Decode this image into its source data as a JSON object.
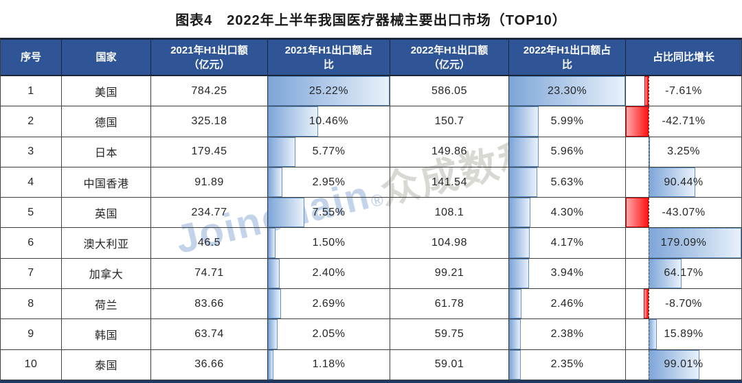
{
  "title": "图表4　2022年上半年我国医疗器械主要出口市场（TOP10）",
  "watermark": {
    "brand": "Joinchain",
    "mark": "®",
    "company": "众成数科"
  },
  "colors": {
    "header_bg": "#2F5597",
    "header_text": "#FFFFFF",
    "header_grid": "#1B2437",
    "border_top": "#1C2840",
    "border_bottom": "#1F3864",
    "grid": "#3F3F3F",
    "text": "#262626",
    "axis": "#444444",
    "bar_blue_start": "#7EA6D8",
    "bar_blue_end": "#E9F1FB",
    "bar_blue_border": "#5E8FC9",
    "bar_red_start": "#FFA6A6",
    "bar_red_end": "#FF1414",
    "bar_red_border": "#E00000",
    "wm_blue": "#C3D4EA",
    "wm_gray": "#D9D9D3"
  },
  "chart_data": {
    "type": "table",
    "figure_label": "图表4",
    "title": "2022年上半年我国医疗器械主要出口市场（TOP10）",
    "columns": [
      "序号",
      "国家",
      "2021年H1出口额\n（亿元）",
      "2021年H1出口额占\n比",
      "2022年H1出口额\n（亿元）",
      "2022年H1出口额占\n比",
      "占比同比增长"
    ],
    "bar_scale": {
      "share_2021_max": 25.22,
      "share_2022_max": 23.3,
      "growth_pos_max": 179.09,
      "growth_neg_max": 43.07
    },
    "rows": [
      {
        "rank": "1",
        "country": "美国",
        "export_2021": "784.25",
        "share_2021": "25.22%",
        "share_2021_pct": 25.22,
        "export_2022": "586.05",
        "share_2022": "23.30%",
        "share_2022_pct": 23.3,
        "growth": "-7.61%",
        "growth_pct": -7.61
      },
      {
        "rank": "2",
        "country": "德国",
        "export_2021": "325.18",
        "share_2021": "10.46%",
        "share_2021_pct": 10.46,
        "export_2022": "150.7",
        "share_2022": "5.99%",
        "share_2022_pct": 5.99,
        "growth": "-42.71%",
        "growth_pct": -42.71
      },
      {
        "rank": "3",
        "country": "日本",
        "export_2021": "179.45",
        "share_2021": "5.77%",
        "share_2021_pct": 5.77,
        "export_2022": "149.86",
        "share_2022": "5.96%",
        "share_2022_pct": 5.96,
        "growth": "3.25%",
        "growth_pct": 3.25
      },
      {
        "rank": "4",
        "country": "中国香港",
        "export_2021": "91.89",
        "share_2021": "2.95%",
        "share_2021_pct": 2.95,
        "export_2022": "141.54",
        "share_2022": "5.63%",
        "share_2022_pct": 5.63,
        "growth": "90.44%",
        "growth_pct": 90.44
      },
      {
        "rank": "5",
        "country": "英国",
        "export_2021": "234.77",
        "share_2021": "7.55%",
        "share_2021_pct": 7.55,
        "export_2022": "108.1",
        "share_2022": "4.30%",
        "share_2022_pct": 4.3,
        "growth": "-43.07%",
        "growth_pct": -43.07
      },
      {
        "rank": "6",
        "country": "澳大利亚",
        "export_2021": "46.5",
        "share_2021": "1.50%",
        "share_2021_pct": 1.5,
        "export_2022": "104.98",
        "share_2022": "4.17%",
        "share_2022_pct": 4.17,
        "growth": "179.09%",
        "growth_pct": 179.09
      },
      {
        "rank": "7",
        "country": "加拿大",
        "export_2021": "74.71",
        "share_2021": "2.40%",
        "share_2021_pct": 2.4,
        "export_2022": "99.21",
        "share_2022": "3.94%",
        "share_2022_pct": 3.94,
        "growth": "64.17%",
        "growth_pct": 64.17
      },
      {
        "rank": "8",
        "country": "荷兰",
        "export_2021": "83.66",
        "share_2021": "2.69%",
        "share_2021_pct": 2.69,
        "export_2022": "61.78",
        "share_2022": "2.46%",
        "share_2022_pct": 2.46,
        "growth": "-8.70%",
        "growth_pct": -8.7
      },
      {
        "rank": "9",
        "country": "韩国",
        "export_2021": "63.74",
        "share_2021": "2.05%",
        "share_2021_pct": 2.05,
        "export_2022": "59.75",
        "share_2022": "2.38%",
        "share_2022_pct": 2.38,
        "growth": "15.89%",
        "growth_pct": 15.89
      },
      {
        "rank": "10",
        "country": "泰国",
        "export_2021": "36.66",
        "share_2021": "1.18%",
        "share_2021_pct": 1.18,
        "export_2022": "59.01",
        "share_2022": "2.35%",
        "share_2022_pct": 2.35,
        "growth": "99.01%",
        "growth_pct": 99.01
      }
    ]
  }
}
